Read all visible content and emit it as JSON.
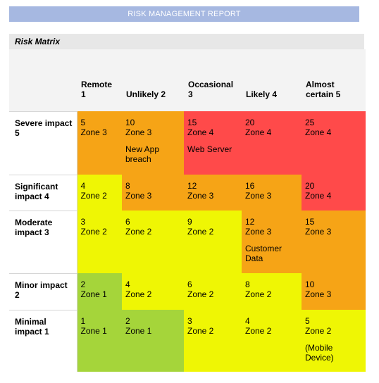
{
  "report_title": "RISK MANAGEMENT REPORT",
  "section_title": "Risk Matrix",
  "columns": [
    {
      "label": "Remote 1"
    },
    {
      "label": "Unlikely 2"
    },
    {
      "label": "Occasional 3"
    },
    {
      "label": "Likely 4"
    },
    {
      "label": "Almost certain 5"
    }
  ],
  "rows": [
    {
      "label": "Severe impact 5",
      "cells": [
        {
          "score": "5",
          "zone": "Zone 3",
          "note": "",
          "color": "#f6a416"
        },
        {
          "score": "10",
          "zone": "Zone 3",
          "note": "New App breach",
          "color": "#f6a416"
        },
        {
          "score": "15",
          "zone": "Zone 4",
          "note": "Web Server",
          "color": "#ff4a4a"
        },
        {
          "score": "20",
          "zone": "Zone 4",
          "note": "",
          "color": "#ff4a4a"
        },
        {
          "score": "25",
          "zone": "Zone 4",
          "note": "",
          "color": "#ff4a4a"
        }
      ]
    },
    {
      "label": "Significant impact 4",
      "cells": [
        {
          "score": "4",
          "zone": "Zone 2",
          "note": "",
          "color": "#eff604"
        },
        {
          "score": "8",
          "zone": "Zone 3",
          "note": "",
          "color": "#f6a416"
        },
        {
          "score": "12",
          "zone": "Zone 3",
          "note": "",
          "color": "#f6a416"
        },
        {
          "score": "16",
          "zone": "Zone 3",
          "note": "",
          "color": "#f6a416"
        },
        {
          "score": "20",
          "zone": "Zone 4",
          "note": "",
          "color": "#ff4a4a"
        }
      ]
    },
    {
      "label": "Moderate impact 3",
      "cells": [
        {
          "score": "3",
          "zone": "Zone 2",
          "note": "",
          "color": "#eff604"
        },
        {
          "score": "6",
          "zone": "Zone 2",
          "note": "",
          "color": "#eff604"
        },
        {
          "score": "9",
          "zone": "Zone 2",
          "note": "",
          "color": "#eff604"
        },
        {
          "score": "12",
          "zone": "Zone 3",
          "note": "Customer Data",
          "color": "#f6a416"
        },
        {
          "score": "15",
          "zone": "Zone 3",
          "note": "",
          "color": "#f6a416"
        }
      ]
    },
    {
      "label": "Minor impact 2",
      "cells": [
        {
          "score": "2",
          "zone": "Zone 1",
          "note": "",
          "color": "#a5d53a"
        },
        {
          "score": "4",
          "zone": "Zone 2",
          "note": "",
          "color": "#eff604"
        },
        {
          "score": "6",
          "zone": "Zone 2",
          "note": "",
          "color": "#eff604"
        },
        {
          "score": "8",
          "zone": "Zone 2",
          "note": "",
          "color": "#eff604"
        },
        {
          "score": "10",
          "zone": "Zone 3",
          "note": "",
          "color": "#f6a416"
        }
      ]
    },
    {
      "label": "Minimal impact 1",
      "cells": [
        {
          "score": "1",
          "zone": "Zone 1",
          "note": "",
          "color": "#a5d53a"
        },
        {
          "score": "2",
          "zone": "Zone 1",
          "note": "",
          "color": "#a5d53a"
        },
        {
          "score": "3",
          "zone": "Zone 2",
          "note": "",
          "color": "#eff604"
        },
        {
          "score": "4",
          "zone": "Zone 2",
          "note": "",
          "color": "#eff604"
        },
        {
          "score": "5",
          "zone": "Zone 2",
          "note": "(Mobile Device)",
          "color": "#eff604"
        }
      ]
    }
  ]
}
